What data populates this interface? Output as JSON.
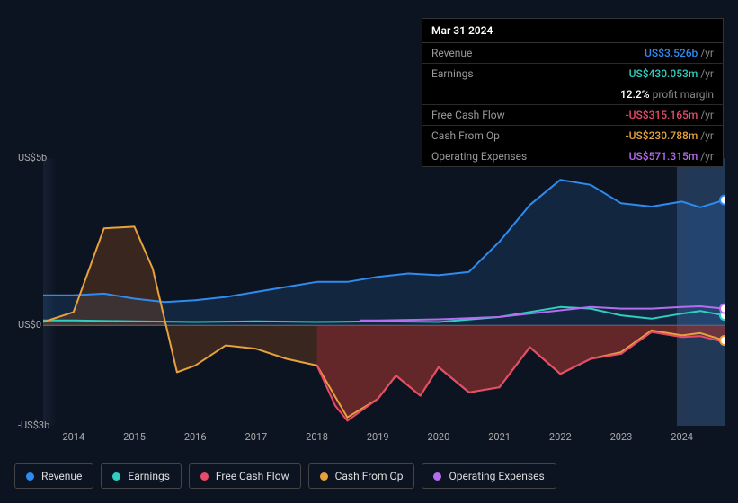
{
  "tooltip": {
    "date": "Mar 31 2024",
    "rows": [
      {
        "label": "Revenue",
        "value": "US$3.526b",
        "color": "#2e8bf0",
        "suffix": "/yr"
      },
      {
        "label": "Earnings",
        "value": "US$430.053m",
        "color": "#2ecfc0",
        "suffix": "/yr"
      },
      {
        "label": "",
        "value": "12.2%",
        "color": "#ffffff",
        "suffix": "profit margin"
      },
      {
        "label": "Free Cash Flow",
        "value": "-US$315.165m",
        "color": "#e84b6a",
        "suffix": "/yr"
      },
      {
        "label": "Cash From Op",
        "value": "-US$230.788m",
        "color": "#e6a23c",
        "suffix": "/yr"
      },
      {
        "label": "Operating Expenses",
        "value": "US$571.315m",
        "color": "#b56cf0",
        "suffix": "/yr"
      }
    ]
  },
  "chart": {
    "type": "area-line",
    "y_labels": [
      {
        "text": "US$5b",
        "value": 5
      },
      {
        "text": "US$0",
        "value": 0
      },
      {
        "text": "-US$3b",
        "value": -3
      }
    ],
    "ylim": [
      -3,
      5
    ],
    "xlim": [
      2013.5,
      2024.7
    ],
    "x_ticks": [
      "2014",
      "2015",
      "2016",
      "2017",
      "2018",
      "2019",
      "2020",
      "2021",
      "2022",
      "2023",
      "2024"
    ],
    "zero_color": "#777",
    "grid_color": "#1a2330",
    "background_color": "#0d1421",
    "forecast_band": {
      "from": 2024.1,
      "to": 2024.7,
      "color": "#1e3a5a"
    },
    "series": [
      {
        "name": "Revenue",
        "key": "revenue",
        "color": "#2e8bf0",
        "fill": "rgba(46,139,240,0.15)",
        "width": 2,
        "points": [
          [
            2013.5,
            0.9
          ],
          [
            2014,
            0.9
          ],
          [
            2014.5,
            0.95
          ],
          [
            2015,
            0.8
          ],
          [
            2015.5,
            0.7
          ],
          [
            2016,
            0.75
          ],
          [
            2016.5,
            0.85
          ],
          [
            2017,
            1.0
          ],
          [
            2017.5,
            1.15
          ],
          [
            2018,
            1.3
          ],
          [
            2018.5,
            1.3
          ],
          [
            2019,
            1.45
          ],
          [
            2019.5,
            1.55
          ],
          [
            2020,
            1.5
          ],
          [
            2020.5,
            1.6
          ],
          [
            2021,
            2.5
          ],
          [
            2021.5,
            3.6
          ],
          [
            2022,
            4.35
          ],
          [
            2022.5,
            4.2
          ],
          [
            2023,
            3.65
          ],
          [
            2023.5,
            3.55
          ],
          [
            2024,
            3.7
          ],
          [
            2024.3,
            3.53
          ],
          [
            2024.7,
            3.75
          ]
        ]
      },
      {
        "name": "Earnings",
        "key": "earnings",
        "color": "#2ecfc0",
        "fill": "none",
        "width": 2,
        "points": [
          [
            2013.5,
            0.15
          ],
          [
            2014,
            0.15
          ],
          [
            2015,
            0.12
          ],
          [
            2016,
            0.1
          ],
          [
            2017,
            0.12
          ],
          [
            2018,
            0.1
          ],
          [
            2019,
            0.12
          ],
          [
            2020,
            0.1
          ],
          [
            2021,
            0.25
          ],
          [
            2022,
            0.55
          ],
          [
            2022.5,
            0.5
          ],
          [
            2023,
            0.3
          ],
          [
            2023.5,
            0.2
          ],
          [
            2024,
            0.35
          ],
          [
            2024.3,
            0.43
          ],
          [
            2024.7,
            0.3
          ]
        ]
      },
      {
        "name": "Cash From Op",
        "key": "cashop",
        "color": "#e6a23c",
        "fill": "rgba(140,75,30,0.35)",
        "width": 2,
        "points": [
          [
            2013.5,
            0.1
          ],
          [
            2014,
            0.4
          ],
          [
            2014.5,
            2.9
          ],
          [
            2015,
            2.95
          ],
          [
            2015.3,
            1.7
          ],
          [
            2015.7,
            -1.4
          ],
          [
            2016,
            -1.2
          ],
          [
            2016.5,
            -0.6
          ],
          [
            2017,
            -0.7
          ],
          [
            2017.5,
            -1.0
          ],
          [
            2018,
            -1.2
          ],
          [
            2018.5,
            -2.75
          ],
          [
            2019,
            -2.2
          ],
          [
            2019.3,
            -1.5
          ],
          [
            2019.7,
            -2.1
          ],
          [
            2020,
            -1.25
          ],
          [
            2020.5,
            -2.0
          ],
          [
            2021,
            -1.85
          ],
          [
            2021.5,
            -0.65
          ],
          [
            2022,
            -1.45
          ],
          [
            2022.5,
            -1.0
          ],
          [
            2023,
            -0.8
          ],
          [
            2023.5,
            -0.15
          ],
          [
            2024,
            -0.3
          ],
          [
            2024.3,
            -0.23
          ],
          [
            2024.7,
            -0.45
          ]
        ]
      },
      {
        "name": "Free Cash Flow",
        "key": "fcf",
        "color": "#e84b6a",
        "fill": "rgba(180,40,60,0.35)",
        "width": 2,
        "points": [
          [
            2018,
            -1.2
          ],
          [
            2018.3,
            -2.4
          ],
          [
            2018.5,
            -2.85
          ],
          [
            2019,
            -2.2
          ],
          [
            2019.3,
            -1.5
          ],
          [
            2019.7,
            -2.1
          ],
          [
            2020,
            -1.25
          ],
          [
            2020.5,
            -2.0
          ],
          [
            2021,
            -1.85
          ],
          [
            2021.5,
            -0.65
          ],
          [
            2022,
            -1.45
          ],
          [
            2022.5,
            -1.0
          ],
          [
            2023,
            -0.85
          ],
          [
            2023.5,
            -0.2
          ],
          [
            2024,
            -0.35
          ],
          [
            2024.3,
            -0.32
          ],
          [
            2024.7,
            -0.5
          ]
        ]
      },
      {
        "name": "Operating Expenses",
        "key": "opex",
        "color": "#b56cf0",
        "fill": "none",
        "width": 2,
        "points": [
          [
            2018.7,
            0.15
          ],
          [
            2019,
            0.15
          ],
          [
            2020,
            0.18
          ],
          [
            2021,
            0.25
          ],
          [
            2022,
            0.45
          ],
          [
            2022.5,
            0.55
          ],
          [
            2023,
            0.5
          ],
          [
            2023.5,
            0.5
          ],
          [
            2024,
            0.55
          ],
          [
            2024.3,
            0.57
          ],
          [
            2024.7,
            0.5
          ]
        ]
      }
    ],
    "end_markers": [
      {
        "series": "revenue",
        "x": 2024.7,
        "y": 3.75,
        "color": "#2e8bf0"
      },
      {
        "series": "earnings",
        "x": 2024.7,
        "y": 0.3,
        "color": "#2ecfc0"
      },
      {
        "series": "opex",
        "x": 2024.7,
        "y": 0.5,
        "color": "#b56cf0"
      },
      {
        "series": "cashop",
        "x": 2024.7,
        "y": -0.45,
        "color": "#e6a23c"
      }
    ]
  },
  "legend": [
    {
      "label": "Revenue",
      "color": "#2e8bf0"
    },
    {
      "label": "Earnings",
      "color": "#2ecfc0"
    },
    {
      "label": "Free Cash Flow",
      "color": "#e84b6a"
    },
    {
      "label": "Cash From Op",
      "color": "#e6a23c"
    },
    {
      "label": "Operating Expenses",
      "color": "#b56cf0"
    }
  ]
}
